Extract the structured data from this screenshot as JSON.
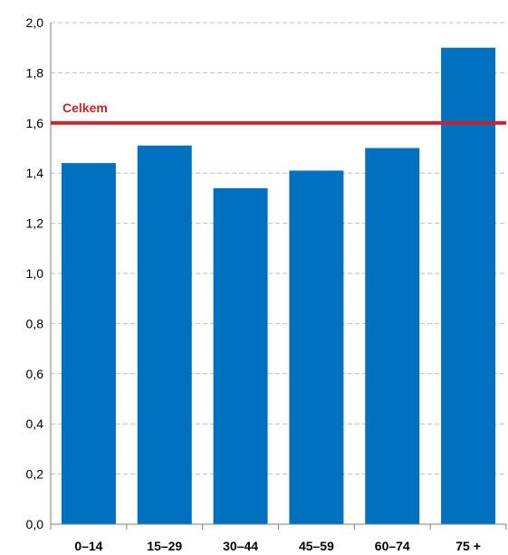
{
  "chart_data": {
    "type": "bar",
    "categories": [
      "0–14",
      "15–29",
      "30–44",
      "45–59",
      "60–74",
      "75 +"
    ],
    "values": [
      1.44,
      1.51,
      1.34,
      1.41,
      1.5,
      1.9
    ],
    "ylim": [
      0,
      2.0
    ],
    "yticks": [
      "0,0",
      "0,2",
      "0,4",
      "0,6",
      "0,8",
      "1,0",
      "1,2",
      "1,4",
      "1,6",
      "1,8",
      "2,0"
    ],
    "grid": true,
    "bar_color": "#0070C0",
    "reference_line": {
      "label": "Celkem",
      "value": 1.6,
      "color": "#C0272D"
    }
  }
}
